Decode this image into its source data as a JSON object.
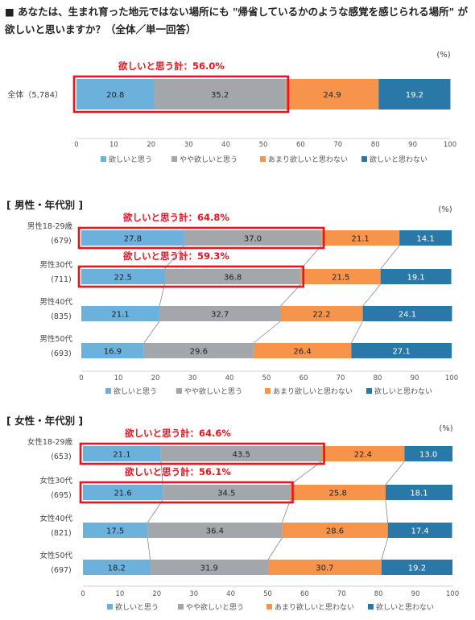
{
  "question": "■  あなたは、生まれ育った地元ではない場所にも \"帰省しているかのような感覚を感じられる場所\" が欲しいと思いますか？（全体／単一回答）",
  "unit": "(%)",
  "legend": [
    "欲しいと思う",
    "やや欲しいと思う",
    "あまり欲しいと思わない",
    "欲しいと思わない"
  ],
  "colors": [
    "#6cb0dc",
    "#a3a7ab",
    "#f7944c",
    "#2a78a8"
  ],
  "highlight_color": "#e8141e",
  "sections": {
    "male": "[ 男性・年代別 ]",
    "female": "[ 女性・年代別 ]"
  },
  "chart_data": [
    {
      "type": "bar",
      "orientation": "horizontal-stacked",
      "xlim": [
        0,
        100
      ],
      "xticks": [
        0,
        10,
        20,
        30,
        40,
        50,
        60,
        70,
        80,
        90,
        100
      ],
      "series_names": [
        "欲しいと思う",
        "やや欲しいと思う",
        "あまり欲しいと思わない",
        "欲しいと思わない"
      ],
      "rows": [
        {
          "label": "全体（5,784）",
          "n": "",
          "values": [
            20.8,
            35.2,
            24.9,
            19.2
          ],
          "callout": "欲しいと思う計：56.0%"
        }
      ]
    },
    {
      "type": "bar",
      "orientation": "horizontal-stacked",
      "title": "[ 男性・年代別 ]",
      "xlim": [
        0,
        100
      ],
      "xticks": [
        0,
        10,
        20,
        30,
        40,
        50,
        60,
        70,
        80,
        90,
        100
      ],
      "series_names": [
        "欲しいと思う",
        "やや欲しいと思う",
        "あまり欲しいと思わない",
        "欲しいと思わない"
      ],
      "rows": [
        {
          "label": "男性18-29歳",
          "n": "(679)",
          "values": [
            27.8,
            37.0,
            21.1,
            14.1
          ],
          "callout": "欲しいと思う計：64.8%"
        },
        {
          "label": "男性30代",
          "n": "(711)",
          "values": [
            22.5,
            36.8,
            21.5,
            19.1
          ],
          "callout": "欲しいと思う計：59.3%"
        },
        {
          "label": "男性40代",
          "n": "(835)",
          "values": [
            21.1,
            32.7,
            22.2,
            24.1
          ],
          "callout": ""
        },
        {
          "label": "男性50代",
          "n": "(693)",
          "values": [
            16.9,
            29.6,
            26.4,
            27.1
          ],
          "callout": ""
        }
      ]
    },
    {
      "type": "bar",
      "orientation": "horizontal-stacked",
      "title": "[ 女性・年代別 ]",
      "xlim": [
        0,
        100
      ],
      "xticks": [
        0,
        10,
        20,
        30,
        40,
        50,
        60,
        70,
        80,
        90,
        100
      ],
      "series_names": [
        "欲しいと思う",
        "やや欲しいと思う",
        "あまり欲しいと思わない",
        "欲しいと思わない"
      ],
      "rows": [
        {
          "label": "女性18-29歳",
          "n": "(653)",
          "values": [
            21.1,
            43.5,
            22.4,
            13.0
          ],
          "callout": "欲しいと思う計：64.6%"
        },
        {
          "label": "女性30代",
          "n": "(695)",
          "values": [
            21.6,
            34.5,
            25.8,
            18.1
          ],
          "callout": "欲しいと思う計：56.1%"
        },
        {
          "label": "女性40代",
          "n": "(821)",
          "values": [
            17.5,
            36.4,
            28.6,
            17.4
          ],
          "callout": ""
        },
        {
          "label": "女性50代",
          "n": "(697)",
          "values": [
            18.2,
            31.9,
            30.7,
            19.2
          ],
          "callout": ""
        }
      ]
    }
  ]
}
